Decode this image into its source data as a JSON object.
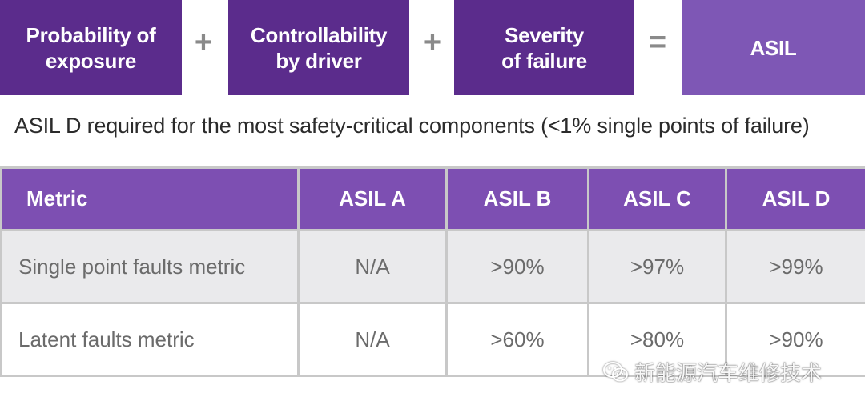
{
  "equation": {
    "terms": [
      {
        "line1": "Probability of",
        "line2": "exposure"
      },
      {
        "line1": "Controllability",
        "line2": "by driver"
      },
      {
        "line1": "Severity",
        "line2": "of failure"
      }
    ],
    "operators": [
      "+",
      "+",
      "="
    ],
    "result": "ASIL"
  },
  "subtitle": "ASIL D required for the most safety-critical components (<1% single points of failure)",
  "table": {
    "headers": [
      "Metric",
      "ASIL A",
      "ASIL B",
      "ASIL C",
      "ASIL D"
    ],
    "rows": [
      [
        "Single point faults metric",
        "N/A",
        ">90%",
        ">97%",
        ">99%"
      ],
      [
        "Latent faults metric",
        "N/A",
        ">60%",
        ">80%",
        ">90%"
      ]
    ]
  },
  "watermark": {
    "text": "新能源汽车维修技术",
    "icon": "wechat-icon"
  },
  "colors": {
    "term_bg": "#5b2c8c",
    "result_bg": "#7e57b5",
    "header_bg": "#7d4fb2",
    "row_shade": "#eaeaec"
  }
}
